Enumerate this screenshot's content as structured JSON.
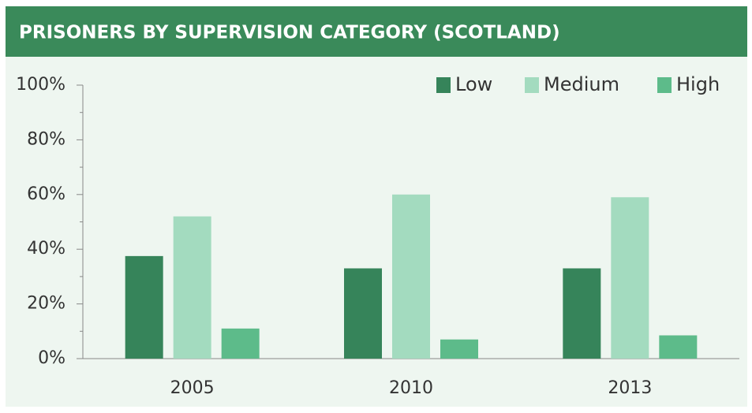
{
  "chart_data": {
    "type": "bar",
    "title": "PRISONERS BY SUPERVISION CATEGORY  (SCOTLAND)",
    "categories": [
      "2005",
      "2010",
      "2013"
    ],
    "series": [
      {
        "name": "Low",
        "color": "#36845a",
        "values": [
          37.5,
          33,
          33
        ]
      },
      {
        "name": "Medium",
        "color": "#a3dbbf",
        "values": [
          52,
          60,
          59
        ]
      },
      {
        "name": "High",
        "color": "#5dbb8a",
        "values": [
          11,
          7,
          8.5
        ]
      }
    ],
    "ylim": [
      0,
      100
    ],
    "yticks": [
      {
        "value": 0,
        "label": "0%"
      },
      {
        "value": 20,
        "label": "20%"
      },
      {
        "value": 40,
        "label": "40%"
      },
      {
        "value": 60,
        "label": "60%"
      },
      {
        "value": 80,
        "label": "80%"
      },
      {
        "value": 100,
        "label": "100%"
      }
    ],
    "yminorticks": [
      10,
      30,
      50,
      70,
      90
    ],
    "legend": "top-right"
  }
}
